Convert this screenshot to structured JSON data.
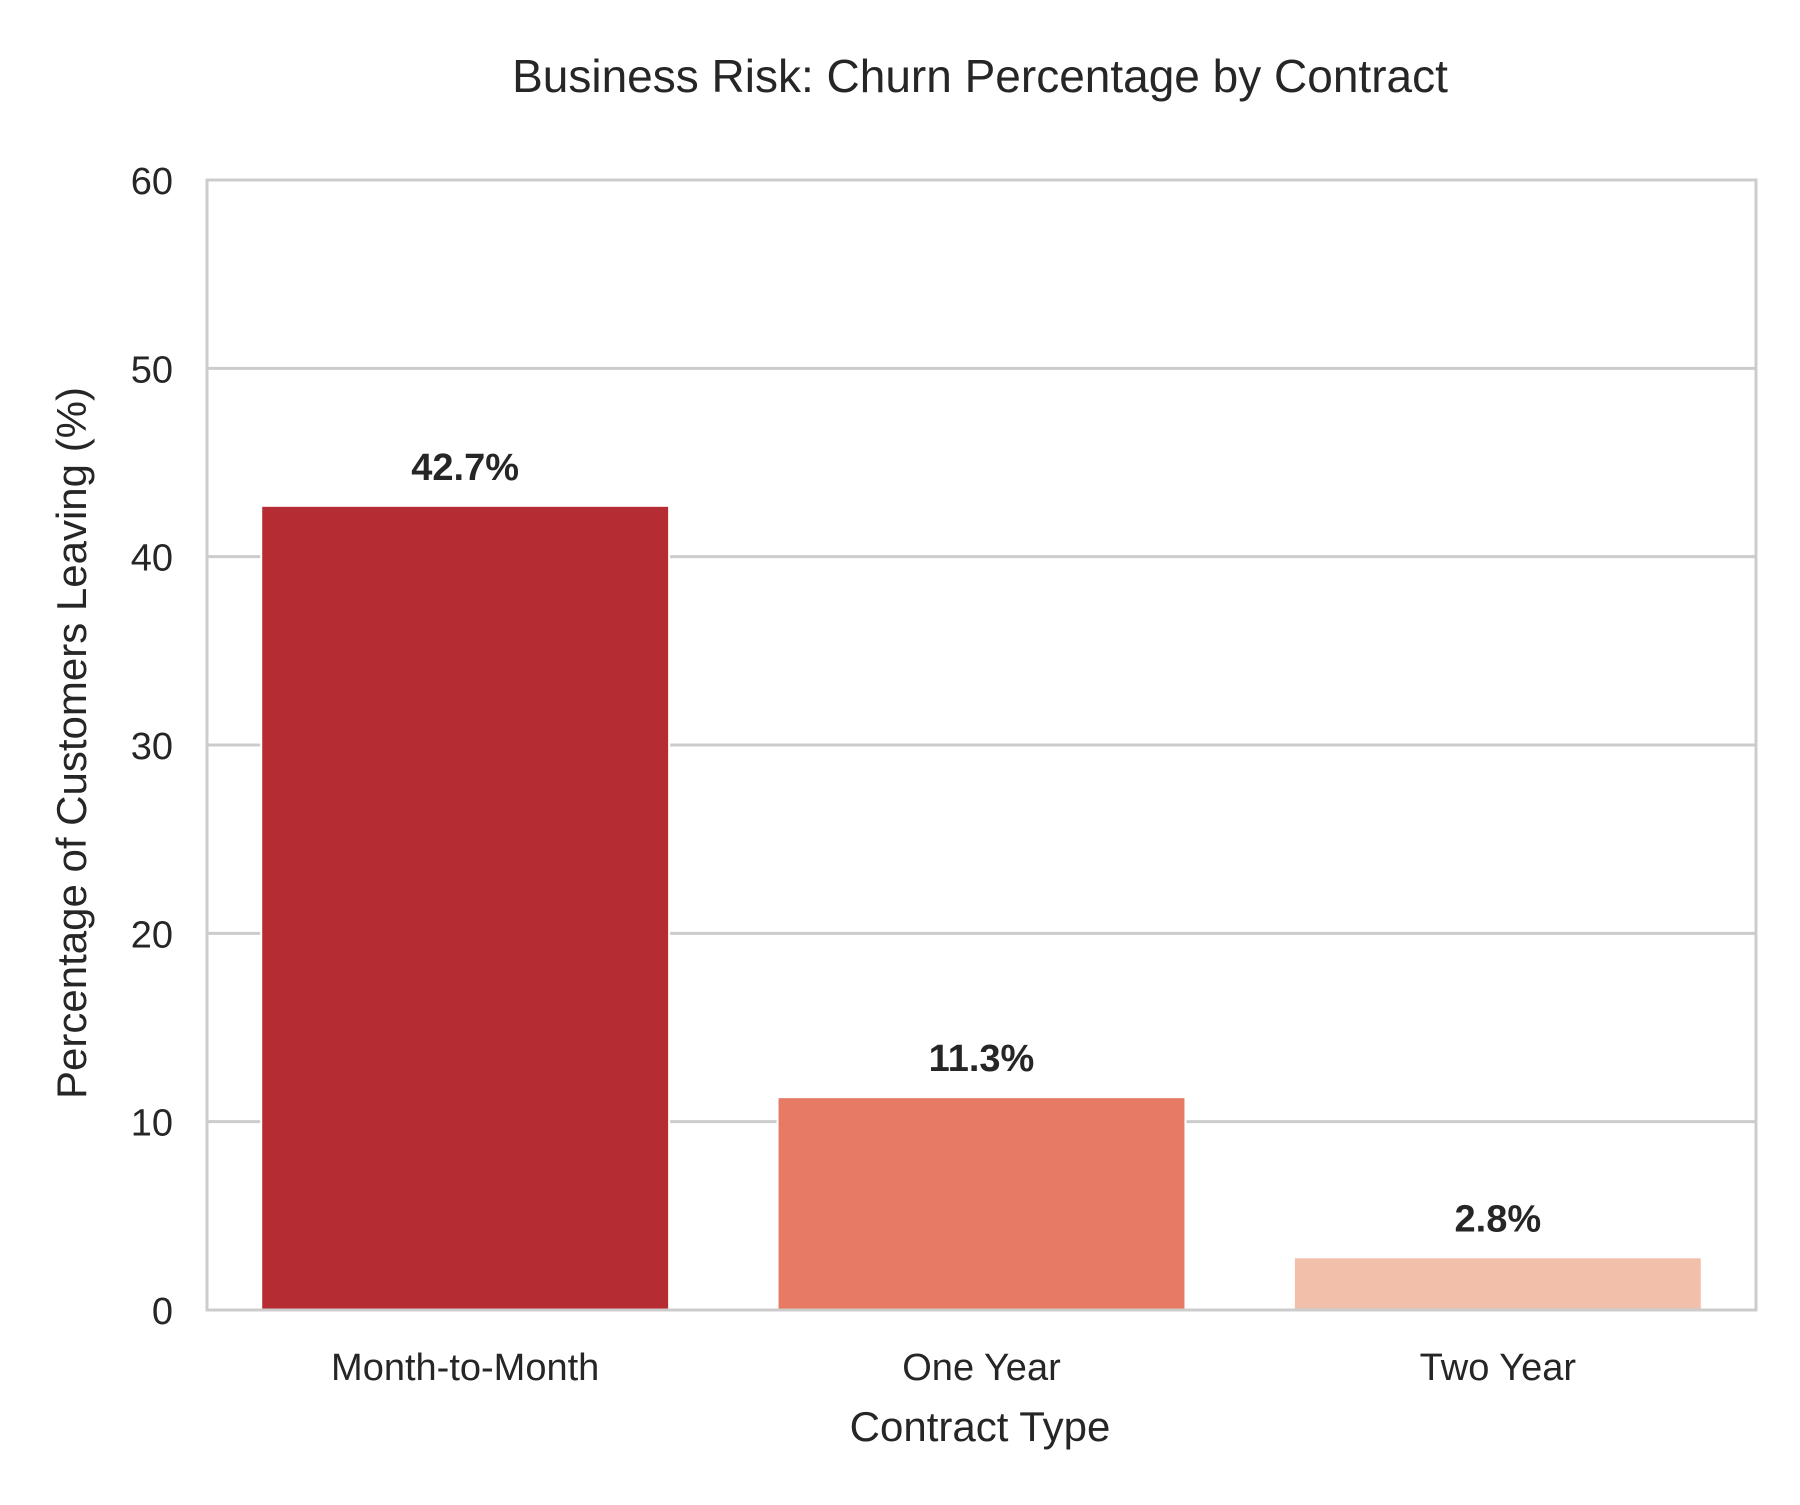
{
  "chart_data": {
    "type": "bar",
    "title": "Business Risk: Churn Percentage by Contract",
    "xlabel": "Contract Type",
    "ylabel": "Percentage of Customers Leaving (%)",
    "categories": [
      "Month-to-Month",
      "One Year",
      "Two Year"
    ],
    "values": [
      42.7,
      11.3,
      2.8
    ],
    "data_labels": [
      "42.7%",
      "11.3%",
      "2.8%"
    ],
    "ylim": [
      0,
      60
    ],
    "yticks": [
      0,
      10,
      20,
      30,
      40,
      50,
      60
    ],
    "grid": "horizontal",
    "colors": {
      "bars": [
        "#b52d32",
        "#e67a64",
        "#f2bfab"
      ],
      "grid": "#cccccc",
      "frame": "#cccccc",
      "text": "#262626"
    }
  }
}
